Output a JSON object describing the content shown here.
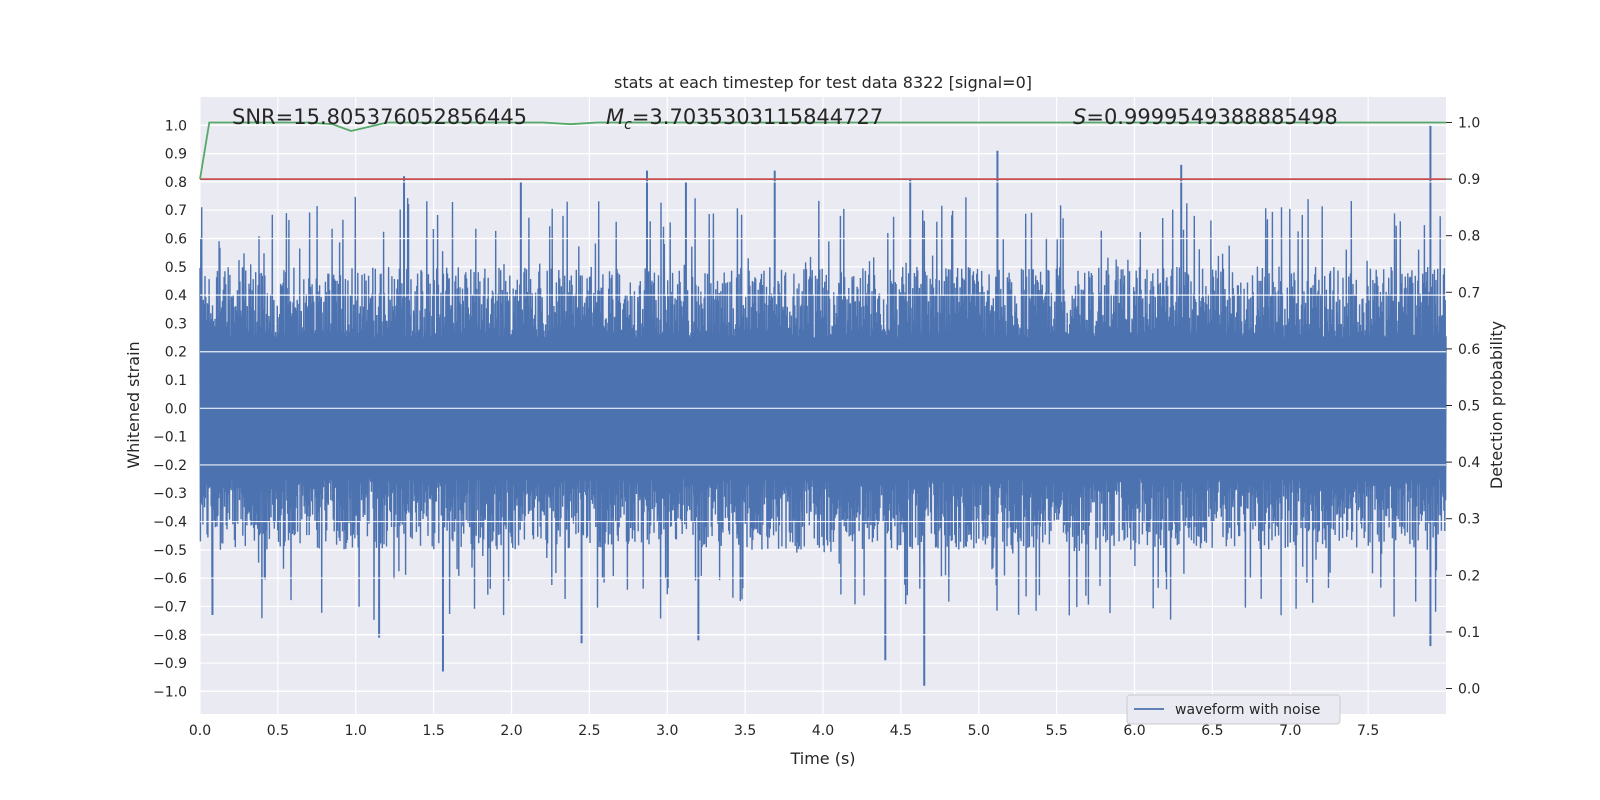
{
  "chart_data": {
    "type": "line",
    "title": "stats at each timestep for test data 8322 [signal=0]",
    "xlabel": "Time (s)",
    "ylabel": "Whitened strain",
    "y2label": "Detection probability",
    "xlim": [
      0.0,
      8.0
    ],
    "ylim": [
      -1.08,
      1.1
    ],
    "y2lim": [
      -0.045,
      1.045
    ],
    "xticks": [
      0.0,
      0.5,
      1.0,
      1.5,
      2.0,
      2.5,
      3.0,
      3.5,
      4.0,
      4.5,
      5.0,
      5.5,
      6.0,
      6.5,
      7.0,
      7.5
    ],
    "xtick_labels": [
      "0.0",
      "0.5",
      "1.0",
      "1.5",
      "2.0",
      "2.5",
      "3.0",
      "3.5",
      "4.0",
      "4.5",
      "5.0",
      "5.5",
      "6.0",
      "6.5",
      "7.0",
      "7.5"
    ],
    "yticks": [
      -1.0,
      -0.9,
      -0.8,
      -0.7,
      -0.6,
      -0.5,
      -0.4,
      -0.3,
      -0.2,
      -0.1,
      0.0,
      0.1,
      0.2,
      0.3,
      0.4,
      0.5,
      0.6,
      0.7,
      0.8,
      0.9,
      1.0
    ],
    "ytick_labels": [
      "−1.0",
      "−0.9",
      "−0.8",
      "−0.7",
      "−0.6",
      "−0.5",
      "−0.4",
      "−0.3",
      "−0.2",
      "−0.1",
      "0.0",
      "0.1",
      "0.2",
      "0.3",
      "0.4",
      "0.5",
      "0.6",
      "0.7",
      "0.8",
      "0.9",
      "1.0"
    ],
    "y2ticks": [
      0.0,
      0.1,
      0.2,
      0.3,
      0.4,
      0.5,
      0.6,
      0.7,
      0.8,
      0.9,
      1.0
    ],
    "y2tick_labels": [
      "0.0",
      "0.1",
      "0.2",
      "0.3",
      "0.4",
      "0.5",
      "0.6",
      "0.7",
      "0.8",
      "0.9",
      "1.0"
    ],
    "grid": true,
    "series": [
      {
        "name": "waveform with noise",
        "axis": "left",
        "color": "#4c72b0",
        "description": "dense whitened noise, roughly within ±0.8",
        "peaks_high": [
          [
            1.31,
            0.82
          ],
          [
            2.06,
            0.8
          ],
          [
            2.87,
            0.84
          ],
          [
            3.12,
            0.8
          ],
          [
            3.69,
            0.84
          ],
          [
            4.56,
            0.81
          ],
          [
            5.12,
            0.91
          ],
          [
            6.3,
            0.86
          ],
          [
            7.9,
            1.0
          ]
        ],
        "peaks_low": [
          [
            1.56,
            -0.93
          ],
          [
            4.4,
            -0.89
          ],
          [
            4.65,
            -0.98
          ],
          [
            7.9,
            -0.84
          ],
          [
            0.08,
            -0.73
          ],
          [
            1.15,
            -0.81
          ],
          [
            2.45,
            -0.83
          ],
          [
            3.2,
            -0.82
          ]
        ]
      },
      {
        "name": "detection probability",
        "axis": "right",
        "color": "#55a868",
        "x": [
          0.0,
          0.06,
          0.1,
          0.7,
          0.85,
          0.97,
          1.05,
          1.2,
          2.2,
          2.38,
          2.55,
          8.0
        ],
        "values": [
          0.9,
          1.0,
          1.0,
          1.0,
          0.997,
          0.985,
          0.99,
          1.0,
          1.0,
          0.997,
          1.0,
          1.0
        ]
      },
      {
        "name": "threshold",
        "axis": "right",
        "color": "#c44e52",
        "x": [
          0.0,
          8.0
        ],
        "values": [
          0.9,
          0.9
        ]
      }
    ],
    "annotations": {
      "snr": "SNR=15.805376052856445",
      "mc_symbol": "M",
      "mc_sub": "c",
      "mc_value": "=3.7035303115844727",
      "s_symbol": "S",
      "s_value": "=0.9999549388885498"
    },
    "legend": {
      "entries": [
        "waveform with noise"
      ],
      "position": "lower-right"
    }
  }
}
